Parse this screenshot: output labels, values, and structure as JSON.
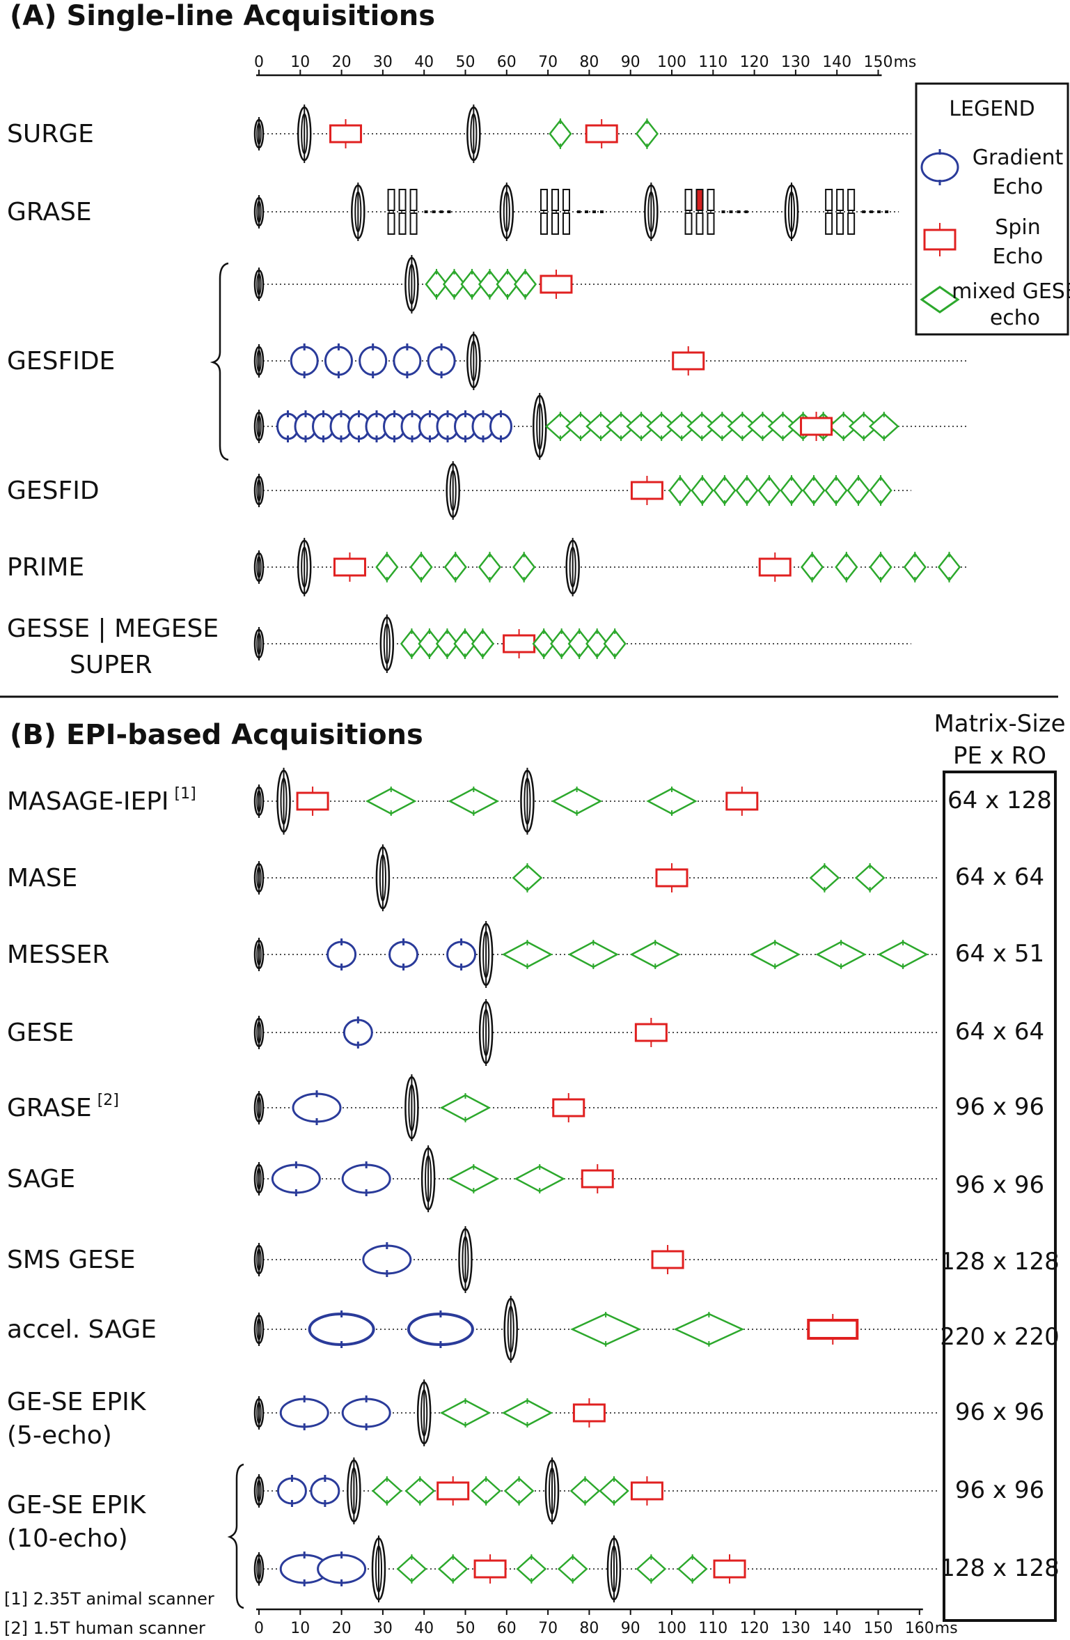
{
  "sectionA": {
    "title": "(A) Single-line Acquisitions",
    "axis": {
      "ticks": [
        "0",
        "10",
        "20",
        "30",
        "40",
        "50",
        "60",
        "70",
        "80",
        "90",
        "100",
        "110",
        "120",
        "130",
        "140",
        "150"
      ],
      "unit": "ms"
    },
    "rows": [
      {
        "label": "SURGE",
        "events": [
          {
            "type": "exc",
            "t": 0
          },
          {
            "type": "ref",
            "t": 11
          },
          {
            "type": "se",
            "t": 21
          },
          {
            "type": "ref",
            "t": 52
          },
          {
            "type": "mix",
            "t": 73
          },
          {
            "type": "se",
            "t": 83
          },
          {
            "type": "mix",
            "t": 94
          }
        ],
        "end": 158
      },
      {
        "label": "GRASE",
        "events": [
          {
            "type": "exc",
            "t": 0
          },
          {
            "type": "ref",
            "t": 24
          },
          {
            "type": "grase",
            "t": 35
          },
          {
            "type": "ref",
            "t": 60
          },
          {
            "type": "grase",
            "t": 72
          },
          {
            "type": "ref",
            "t": 95
          },
          {
            "type": "grase",
            "t": 107,
            "filled": 1
          },
          {
            "type": "ref",
            "t": 129
          },
          {
            "type": "grase",
            "t": 141
          }
        ],
        "end": 155
      },
      {
        "label": "GESFIDE",
        "label2": "",
        "events": [
          {
            "type": "exc",
            "t": 0
          },
          {
            "type": "ref",
            "t": 37
          },
          {
            "type": "mix",
            "t": 43,
            "n": 6,
            "step": 4.3
          },
          {
            "type": "se",
            "t": 72
          }
        ],
        "end": 158
      },
      {
        "label": "",
        "events": [
          {
            "type": "exc",
            "t": 0
          },
          {
            "type": "ge",
            "t": 11,
            "n": 5,
            "step": 8.3
          },
          {
            "type": "ref",
            "t": 52
          },
          {
            "type": "se",
            "t": 104
          }
        ],
        "end": 172
      },
      {
        "label": "",
        "events": [
          {
            "type": "exc",
            "t": 0
          },
          {
            "type": "ge",
            "t": 7,
            "n": 13,
            "step": 4.3
          },
          {
            "type": "ref",
            "t": 68
          },
          {
            "type": "mix",
            "t": 73,
            "n": 17,
            "step": 4.9
          },
          {
            "type": "se",
            "t": 135
          }
        ],
        "end": 172
      },
      {
        "label": "GESFID",
        "events": [
          {
            "type": "exc",
            "t": 0
          },
          {
            "type": "ref",
            "t": 47
          },
          {
            "type": "se",
            "t": 94
          },
          {
            "type": "mix",
            "t": 102,
            "n": 10,
            "step": 5.4
          }
        ],
        "end": 158
      },
      {
        "label": "PRIME",
        "events": [
          {
            "type": "exc",
            "t": 0
          },
          {
            "type": "ref",
            "t": 11
          },
          {
            "type": "se",
            "t": 22
          },
          {
            "type": "mix",
            "t": 31,
            "n": 5,
            "step": 8.3
          },
          {
            "type": "ref",
            "t": 76
          },
          {
            "type": "se",
            "t": 125
          },
          {
            "type": "mix",
            "t": 134,
            "n": 5,
            "step": 8.3
          }
        ],
        "end": 172
      },
      {
        "label": "GESSE | MEGESE",
        "label2": "SUPER",
        "events": [
          {
            "type": "exc",
            "t": 0
          },
          {
            "type": "ref",
            "t": 31
          },
          {
            "type": "mix",
            "t": 37,
            "n": 5,
            "step": 4.3
          },
          {
            "type": "se",
            "t": 63
          },
          {
            "type": "mix",
            "t": 69,
            "n": 5,
            "step": 4.3
          }
        ],
        "end": 158
      }
    ]
  },
  "legend": {
    "title": "LEGEND",
    "items": [
      {
        "name": "Gradient",
        "name2": "Echo"
      },
      {
        "name": "Spin",
        "name2": "Echo"
      },
      {
        "name": "mixed GESE",
        "name2": "echo"
      }
    ]
  },
  "sectionB": {
    "title": "(B) EPI-based Acquisitions",
    "matrix_header": [
      "Matrix-Size",
      "PE x RO"
    ],
    "axis": {
      "ticks": [
        "0",
        "10",
        "20",
        "30",
        "40",
        "50",
        "60",
        "70",
        "80",
        "90",
        "100",
        "110",
        "120",
        "130",
        "140",
        "150",
        "160"
      ],
      "unit": "ms"
    },
    "rows": [
      {
        "label": "MASAGE-IEPI",
        "sup": "[1]",
        "matrix": "64 x 128",
        "events": [
          {
            "type": "exc",
            "t": 0
          },
          {
            "type": "ref",
            "t": 6
          },
          {
            "type": "se",
            "t": 13
          },
          {
            "type": "bmix",
            "t": 32
          },
          {
            "type": "bmix",
            "t": 52
          },
          {
            "type": "ref",
            "t": 65
          },
          {
            "type": "bmix",
            "t": 77
          },
          {
            "type": "bmix",
            "t": 100
          },
          {
            "type": "se",
            "t": 117
          }
        ]
      },
      {
        "label": "MASE",
        "matrix": "64 x 64",
        "events": [
          {
            "type": "exc",
            "t": 0
          },
          {
            "type": "ref",
            "t": 30
          },
          {
            "type": "mix",
            "t": 65
          },
          {
            "type": "se",
            "t": 100
          },
          {
            "type": "mix",
            "t": 137
          },
          {
            "type": "mix",
            "t": 148
          }
        ]
      },
      {
        "label": "MESSER",
        "matrix": "64 x 51",
        "events": [
          {
            "type": "exc",
            "t": 0
          },
          {
            "type": "ge",
            "t": 20
          },
          {
            "type": "ge",
            "t": 35
          },
          {
            "type": "ge",
            "t": 49
          },
          {
            "type": "ref",
            "t": 55
          },
          {
            "type": "bmix",
            "t": 65
          },
          {
            "type": "bmix",
            "t": 81
          },
          {
            "type": "bmix",
            "t": 96
          },
          {
            "type": "bmix",
            "t": 125
          },
          {
            "type": "bmix",
            "t": 141
          },
          {
            "type": "bmix",
            "t": 156
          }
        ]
      },
      {
        "label": "GESE",
        "matrix": "64 x 64",
        "events": [
          {
            "type": "exc",
            "t": 0
          },
          {
            "type": "ge",
            "t": 24
          },
          {
            "type": "ref",
            "t": 55
          },
          {
            "type": "se",
            "t": 95
          }
        ]
      },
      {
        "label": "GRASE",
        "sup": "[2]",
        "matrix": "96 x 96",
        "events": [
          {
            "type": "exc",
            "t": 0
          },
          {
            "type": "bge",
            "t": 14
          },
          {
            "type": "ref",
            "t": 37
          },
          {
            "type": "bmix",
            "t": 50
          },
          {
            "type": "se",
            "t": 75
          }
        ]
      },
      {
        "label": "SAGE",
        "matrix": "96 x 96",
        "events": [
          {
            "type": "exc",
            "t": 0
          },
          {
            "type": "bge",
            "t": 9
          },
          {
            "type": "bge",
            "t": 26
          },
          {
            "type": "ref",
            "t": 41
          },
          {
            "type": "bmix",
            "t": 52
          },
          {
            "type": "bmix",
            "t": 68
          },
          {
            "type": "se",
            "t": 82
          }
        ]
      },
      {
        "label": "SMS GESE",
        "matrix": "128 x 128",
        "events": [
          {
            "type": "exc",
            "t": 0
          },
          {
            "type": "bge",
            "t": 31
          },
          {
            "type": "ref",
            "t": 50
          },
          {
            "type": "se",
            "t": 99
          }
        ]
      },
      {
        "label": "accel. SAGE",
        "matrix": "220 x 220",
        "events": [
          {
            "type": "exc",
            "t": 0
          },
          {
            "type": "xge",
            "t": 20
          },
          {
            "type": "xge",
            "t": 44
          },
          {
            "type": "ref",
            "t": 61
          },
          {
            "type": "xmix",
            "t": 84
          },
          {
            "type": "xmix",
            "t": 109
          },
          {
            "type": "xse",
            "t": 139
          }
        ]
      },
      {
        "label": "GE-SE EPIK",
        "label2": "(5-echo)",
        "matrix": "96 x 96",
        "events": [
          {
            "type": "exc",
            "t": 0
          },
          {
            "type": "bge",
            "t": 11
          },
          {
            "type": "bge",
            "t": 26
          },
          {
            "type": "ref",
            "t": 40
          },
          {
            "type": "bmix",
            "t": 50
          },
          {
            "type": "bmix",
            "t": 65
          },
          {
            "type": "se",
            "t": 80
          }
        ]
      },
      {
        "label": "GE-SE EPIK",
        "label2": "(10-echo)",
        "matrix": "96 x 96",
        "events": [
          {
            "type": "exc",
            "t": 0
          },
          {
            "type": "ge",
            "t": 8
          },
          {
            "type": "ge",
            "t": 16
          },
          {
            "type": "ref",
            "t": 23
          },
          {
            "type": "mix",
            "t": 31
          },
          {
            "type": "mix",
            "t": 39
          },
          {
            "type": "se",
            "t": 47
          },
          {
            "type": "mix",
            "t": 55
          },
          {
            "type": "mix",
            "t": 63
          },
          {
            "type": "ref",
            "t": 71
          },
          {
            "type": "mix",
            "t": 79
          },
          {
            "type": "mix",
            "t": 86
          },
          {
            "type": "se",
            "t": 94
          }
        ]
      },
      {
        "label": "",
        "matrix": "128 x 128",
        "events": [
          {
            "type": "exc",
            "t": 0
          },
          {
            "type": "bge",
            "t": 11
          },
          {
            "type": "bge",
            "t": 20
          },
          {
            "type": "ref",
            "t": 29
          },
          {
            "type": "mix",
            "t": 37
          },
          {
            "type": "mix",
            "t": 47
          },
          {
            "type": "se",
            "t": 56
          },
          {
            "type": "mix",
            "t": 66
          },
          {
            "type": "mix",
            "t": 76
          },
          {
            "type": "ref",
            "t": 86
          },
          {
            "type": "mix",
            "t": 95
          },
          {
            "type": "mix",
            "t": 105
          },
          {
            "type": "se",
            "t": 114
          }
        ]
      }
    ],
    "footnotes": [
      "[1] 2.35T animal scanner",
      "[2] 1.5T human scanner"
    ]
  },
  "colors": {
    "ge": "#2a3b9a",
    "se": "#e02020",
    "mix": "#2ca82c",
    "pulse": "#111111",
    "filled": "#d42020"
  }
}
